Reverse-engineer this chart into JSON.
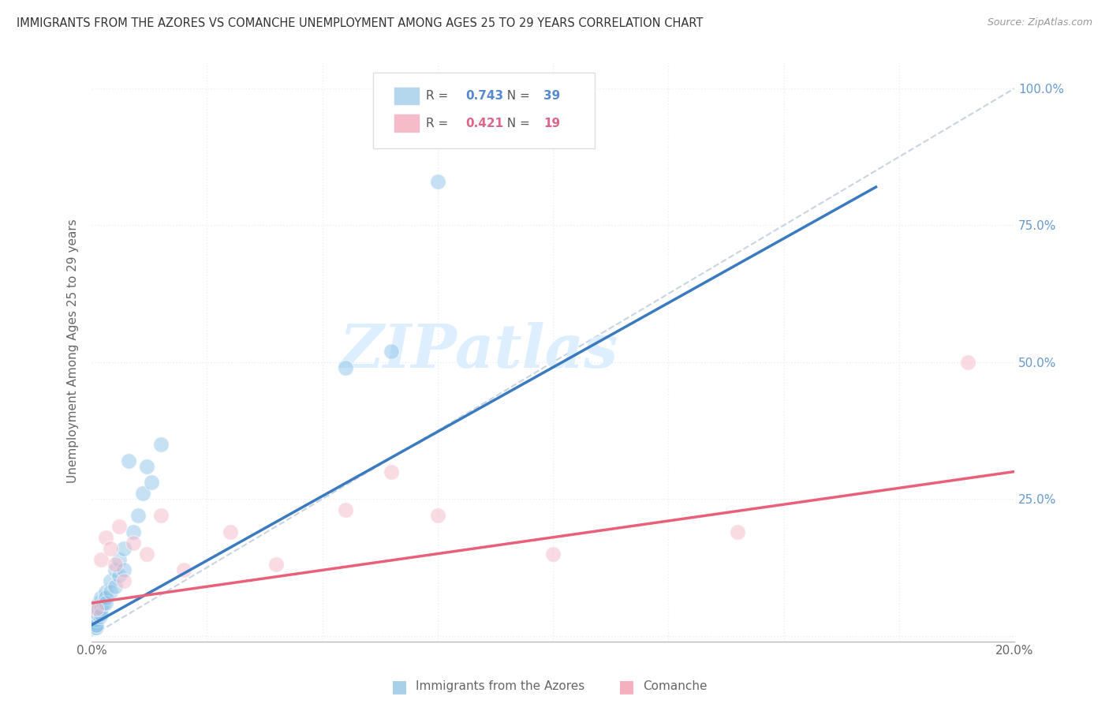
{
  "title": "IMMIGRANTS FROM THE AZORES VS COMANCHE UNEMPLOYMENT AMONG AGES 25 TO 29 YEARS CORRELATION CHART",
  "source": "Source: ZipAtlas.com",
  "ylabel": "Unemployment Among Ages 25 to 29 years",
  "xlim": [
    0.0,
    0.2
  ],
  "ylim": [
    -0.01,
    1.05
  ],
  "blue_R": 0.743,
  "blue_N": 39,
  "pink_R": 0.421,
  "pink_N": 19,
  "blue_color": "#8ec4e8",
  "pink_color": "#f5b8c8",
  "blue_line_color": "#3a7abf",
  "pink_line_color": "#e8607a",
  "ref_line_color": "#c8d4e0",
  "background_color": "#ffffff",
  "grid_color": "#e8eff8",
  "blue_legend_color": "#a8d0eb",
  "pink_legend_color": "#f5b0c0",
  "blue_label_color": "#5588cc",
  "pink_label_color": "#dd6688",
  "right_axis_color": "#6699cc",
  "watermark_color": "#ddeeff",
  "blue_scatter_x": [
    0.0003,
    0.0005,
    0.0006,
    0.0007,
    0.0008,
    0.0009,
    0.001,
    0.001,
    0.001,
    0.0012,
    0.0013,
    0.0015,
    0.0015,
    0.0018,
    0.002,
    0.002,
    0.002,
    0.0025,
    0.003,
    0.003,
    0.003,
    0.004,
    0.004,
    0.005,
    0.005,
    0.006,
    0.006,
    0.007,
    0.007,
    0.008,
    0.009,
    0.01,
    0.011,
    0.012,
    0.013,
    0.015,
    0.055,
    0.065,
    0.075
  ],
  "blue_scatter_y": [
    0.02,
    0.03,
    0.015,
    0.025,
    0.02,
    0.015,
    0.04,
    0.03,
    0.02,
    0.05,
    0.04,
    0.06,
    0.05,
    0.035,
    0.07,
    0.05,
    0.04,
    0.06,
    0.08,
    0.07,
    0.06,
    0.1,
    0.08,
    0.12,
    0.09,
    0.14,
    0.11,
    0.16,
    0.12,
    0.32,
    0.19,
    0.22,
    0.26,
    0.31,
    0.28,
    0.35,
    0.49,
    0.52,
    0.83
  ],
  "pink_scatter_x": [
    0.001,
    0.002,
    0.003,
    0.004,
    0.005,
    0.006,
    0.007,
    0.009,
    0.012,
    0.015,
    0.02,
    0.03,
    0.04,
    0.055,
    0.065,
    0.075,
    0.1,
    0.14,
    0.19
  ],
  "pink_scatter_y": [
    0.05,
    0.14,
    0.18,
    0.16,
    0.13,
    0.2,
    0.1,
    0.17,
    0.15,
    0.22,
    0.12,
    0.19,
    0.13,
    0.23,
    0.3,
    0.22,
    0.15,
    0.19,
    0.5
  ],
  "blue_line_x0": 0.0,
  "blue_line_y0": 0.02,
  "blue_line_x1": 0.17,
  "blue_line_y1": 0.82,
  "pink_line_x0": 0.0,
  "pink_line_y0": 0.06,
  "pink_line_x1": 0.2,
  "pink_line_y1": 0.3,
  "watermark": "ZIPatlas"
}
